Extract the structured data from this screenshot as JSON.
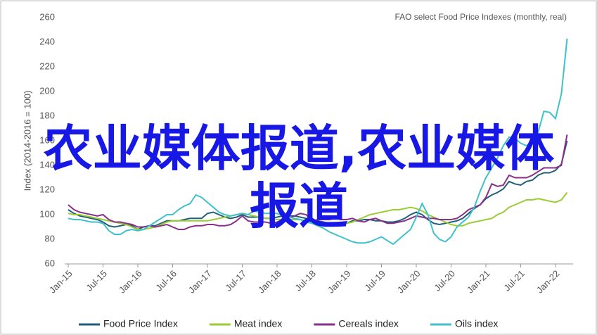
{
  "chart_data": {
    "type": "line",
    "title": "FAO select Food Price Indexes (monthly, real)",
    "y_label": "Index (2014-2016 = 100)",
    "annotation": "农业媒体报道,农业媒体报道",
    "categories": [
      "Jan-15",
      null,
      null,
      null,
      null,
      null,
      "Jul-15",
      null,
      null,
      null,
      null,
      null,
      "Jan-16",
      null,
      null,
      null,
      null,
      null,
      "Jul-16",
      null,
      null,
      null,
      null,
      null,
      "Jan-17",
      null,
      null,
      null,
      null,
      null,
      "Jul-17",
      null,
      null,
      null,
      null,
      null,
      "Jan-18",
      null,
      null,
      null,
      null,
      null,
      "Jul-18",
      null,
      null,
      null,
      null,
      null,
      "Jan-19",
      null,
      null,
      null,
      null,
      null,
      "Jul-19",
      null,
      null,
      null,
      null,
      null,
      "Jan-20",
      null,
      null,
      null,
      null,
      null,
      "Jul-20",
      null,
      null,
      null,
      null,
      null,
      "Jan-21",
      null,
      null,
      null,
      null,
      null,
      "Jul-21",
      null,
      null,
      null,
      null,
      null,
      "Jan-22",
      null,
      null
    ],
    "series": [
      {
        "name": "Food Price Index",
        "color": "#1f5f7a",
        "values": [
          104,
          101,
          99,
          98,
          97,
          96,
          94,
          91,
          90,
          91,
          92,
          91,
          88,
          90,
          91,
          91,
          93,
          95,
          95,
          95,
          96,
          97,
          97,
          97,
          101,
          102,
          100,
          98,
          97,
          98,
          100,
          98,
          98,
          98,
          97,
          97,
          98,
          99,
          99,
          99,
          98,
          97,
          95,
          95,
          94,
          93,
          93,
          92,
          93,
          95,
          95,
          96,
          96,
          95,
          95,
          94,
          94,
          95,
          97,
          100,
          102,
          100,
          96,
          93,
          92,
          93,
          94,
          95,
          97,
          101,
          105,
          108,
          113,
          116,
          118,
          121,
          127,
          125,
          124,
          127,
          128,
          132,
          134,
          134,
          136,
          141,
          160
        ]
      },
      {
        "name": "Meat index",
        "color": "#9acd32",
        "values": [
          101,
          100,
          100,
          99,
          98,
          97,
          96,
          95,
          94,
          93,
          92,
          90,
          88,
          88,
          89,
          90,
          92,
          94,
          95,
          95,
          95,
          95,
          95,
          95,
          95,
          96,
          97,
          98,
          99,
          100,
          101,
          100,
          99,
          98,
          97,
          97,
          96,
          96,
          96,
          96,
          96,
          95,
          95,
          94,
          93,
          93,
          92,
          92,
          93,
          94,
          96,
          98,
          100,
          101,
          102,
          103,
          104,
          104,
          105,
          106,
          105,
          103,
          100,
          98,
          96,
          94,
          92,
          91,
          91,
          93,
          94,
          95,
          96,
          97,
          100,
          102,
          106,
          108,
          110,
          112,
          112,
          113,
          112,
          111,
          110,
          112,
          118
        ]
      },
      {
        "name": "Cereals index",
        "color": "#8b2f8b",
        "values": [
          108,
          104,
          102,
          101,
          100,
          99,
          100,
          96,
          94,
          94,
          93,
          92,
          90,
          90,
          91,
          90,
          91,
          92,
          90,
          88,
          88,
          90,
          91,
          91,
          92,
          92,
          91,
          91,
          92,
          95,
          99,
          95,
          94,
          94,
          94,
          93,
          94,
          96,
          97,
          99,
          101,
          100,
          95,
          96,
          96,
          96,
          97,
          96,
          96,
          97,
          95,
          94,
          96,
          97,
          95,
          93,
          93,
          94,
          95,
          97,
          99,
          98,
          97,
          97,
          96,
          96,
          96,
          97,
          100,
          104,
          106,
          108,
          114,
          125,
          123,
          124,
          132,
          130,
          130,
          130,
          132,
          135,
          138,
          138,
          138,
          140,
          165
        ]
      },
      {
        "name": "Oils index",
        "color": "#3fc1c9",
        "values": [
          97,
          96,
          96,
          95,
          94,
          94,
          93,
          87,
          84,
          84,
          87,
          88,
          87,
          88,
          91,
          94,
          97,
          100,
          100,
          104,
          107,
          109,
          116,
          114,
          110,
          106,
          102,
          100,
          99,
          100,
          101,
          100,
          103,
          102,
          101,
          101,
          101,
          99,
          98,
          97,
          96,
          94,
          93,
          91,
          89,
          86,
          84,
          82,
          80,
          78,
          77,
          77,
          78,
          80,
          82,
          79,
          76,
          80,
          84,
          88,
          98,
          109,
          100,
          85,
          80,
          78,
          82,
          90,
          94,
          98,
          106,
          119,
          130,
          138,
          146,
          156,
          163,
          162,
          158,
          156,
          160,
          167,
          184,
          183,
          178,
          198,
          243
        ]
      }
    ],
    "ylim": [
      60,
      260
    ],
    "yticks": [
      60,
      80,
      100,
      120,
      140,
      160,
      180,
      200,
      220,
      240,
      260
    ],
    "legend": "bottom"
  }
}
